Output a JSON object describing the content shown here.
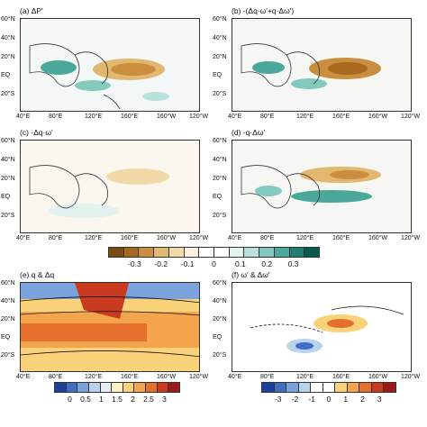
{
  "panels": [
    {
      "id": "a",
      "label": "(a) ΔP'"
    },
    {
      "id": "b",
      "label": "(b) -(Δq·ω'+q·Δω')"
    },
    {
      "id": "c",
      "label": "(c) -Δq·ω'"
    },
    {
      "id": "d",
      "label": "(d) -q·Δω'"
    },
    {
      "id": "e",
      "label": "(e) q & Δq"
    },
    {
      "id": "f",
      "label": "(f) ω' & Δω'"
    }
  ],
  "lat_ticks": [
    "60°N",
    "40°N",
    "20°N",
    "EQ",
    "20°S"
  ],
  "lon_ticks": [
    "40°E",
    "80°E",
    "120°E",
    "160°E",
    "160°W",
    "120°W"
  ],
  "colorbar1": {
    "ticks": [
      "-0.3",
      "-0.2",
      "-0.1",
      "0",
      "0.1",
      "0.2",
      "0.3"
    ],
    "colors": [
      "#7a4a12",
      "#a8681e",
      "#c98e3f",
      "#e2b870",
      "#f1d9a8",
      "#fbf1de",
      "#ffffff",
      "#ffffff",
      "#e3f1ef",
      "#b9e1db",
      "#84c9be",
      "#4aa89a",
      "#1f7f72",
      "#0b5a4f"
    ]
  },
  "colorbar2": {
    "ticks": [
      "0",
      "0.5",
      "1",
      "1.5",
      "2",
      "2.5",
      "3"
    ],
    "colors": [
      "#1d3f9e",
      "#3f6dc4",
      "#79a3da",
      "#b8d3ec",
      "#e7f0f6",
      "#fbf1c4",
      "#f9d27a",
      "#f4a54b",
      "#e56f2c",
      "#c93a20",
      "#9e1a17"
    ]
  },
  "colorbar3": {
    "ticks": [
      "-3",
      "-2",
      "-1",
      "0",
      "1",
      "2",
      "3"
    ],
    "colors": [
      "#1d3f9e",
      "#3f6dc4",
      "#79a3da",
      "#b8d3ec",
      "#ffffff",
      "#ffffff",
      "#f9d27a",
      "#f4a54b",
      "#e56f2c",
      "#c93a20",
      "#9e1a17"
    ]
  }
}
